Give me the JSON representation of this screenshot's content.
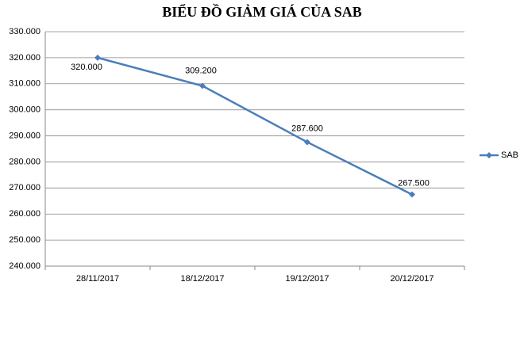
{
  "chart_data": {
    "type": "line",
    "title": "BIỂU ĐỒ GIẢM GIÁ CỦA SAB",
    "categories": [
      "28/11/2017",
      "18/12/2017",
      "19/12/2017",
      "20/12/2017"
    ],
    "series": [
      {
        "name": "SAB",
        "color": "#4a7ebb",
        "values": [
          320000,
          309200,
          287600,
          267500
        ],
        "value_labels": [
          "320.000",
          "309.200",
          "287.600",
          "267.500"
        ]
      }
    ],
    "ylim": [
      240000,
      330000
    ],
    "yticks": [
      {
        "value": 240000,
        "label": "240.000"
      },
      {
        "value": 250000,
        "label": "250.000"
      },
      {
        "value": 260000,
        "label": "260.000"
      },
      {
        "value": 270000,
        "label": "270.000"
      },
      {
        "value": 280000,
        "label": "280.000"
      },
      {
        "value": 290000,
        "label": "290.000"
      },
      {
        "value": 300000,
        "label": "300.000"
      },
      {
        "value": 310000,
        "label": "310.000"
      },
      {
        "value": 320000,
        "label": "320.000"
      },
      {
        "value": 330000,
        "label": "330.000"
      }
    ],
    "grid": true,
    "legend": "right"
  }
}
